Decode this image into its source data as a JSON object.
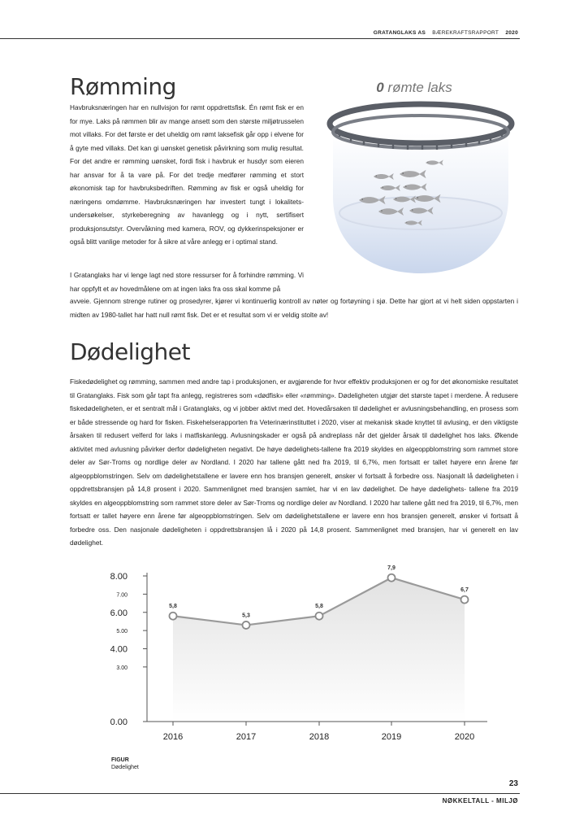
{
  "header": {
    "company": "GRATANGLAKS AS",
    "report": "BÆREKRAFTSRAPPORT",
    "year": "2020"
  },
  "section1": {
    "title": "Rømming",
    "kpi_value": "0",
    "kpi_label": " rømte laks",
    "para1": "Havbruksnæringen har en nullvisjon for rømt oppdrettsfisk. Én rømt fisk er en for mye. Laks på rømmen blir av mange ansett som den største miljøtrusselen mot villaks. For det første er det uheldig om rømt laksefisk går opp i elvene for å gyte med villaks. Det kan gi uønsket genetisk påvirkning som mulig resultat. For det andre er rømming uønsket, fordi fisk i havbruk er husdyr som eieren har ansvar for å ta vare på. For det tredje medfører rømming et stort økonomisk tap for havbruksbedriften. Rømming av fisk er også uheldig for næringens omdømme. Havbruksnæringen har investert tungt i lokalitets-undersøkelser, styrkeberegning av havanlegg og i nytt, sertifisert produksjonsutstyr. Overvåkning med kamera, ROV, og dykkerinspeksjoner er også blitt vanlige metoder for å sikre at våre anlegg er i optimal stand.",
    "para2": "I Gratanglaks har vi lenge lagt ned store ressurser for å forhindre rømming. Vi har oppfylt et av hovedmålene om at ingen laks fra oss skal komme på",
    "para3": "avveie. Gjennom strenge rutiner og prosedyrer, kjører vi kontinuerlig kontroll av nøter og fortøyning i sjø. Dette har gjort at vi helt siden oppstarten i midten av 1980-tallet har hatt null rømt fisk. Det er et resultat som vi er veldig stolte av!"
  },
  "section2": {
    "title": "Dødelighet",
    "para": "Fiskedødelighet og rømming, sammen med andre tap i produksjonen, er avgjørende for hvor effektiv produksjonen er og for det økonomiske resultatet til Gratanglaks. Fisk som går tapt fra anlegg, registreres som «dødfisk» eller «rømming». Dødeligheten utgjør det største tapet i merdene. Å redusere fiskedødeligheten, er et sentralt mål i Gratanglaks, og vi jobber aktivt med det. Hovedårsaken til dødelighet er avlusningsbehandling, en prosess som er både stressende og hard for fisken. Fiskehelserapporten fra Veterinærinstituttet i 2020, viser at mekanisk skade knyttet til avlusing, er den viktigste årsaken til redusert velferd for laks i matfiskanlegg. Avlusningskader er også på andreplass når det gjelder årsak til dødelighet hos laks. Økende aktivitet med avlusning påvirker derfor dødeligheten negativt. De høye dødelighets-tallene fra 2019 skyldes en algeoppblomstring som rammet store deler av Sør-Troms og nordlige deler av Nordland. I 2020 har tallene gått ned fra 2019, til 6,7%, men fortsatt er tallet høyere enn årene før algeoppblomstringen. Selv om dødelighetstallene er lavere enn hos bransjen generelt, ønsker vi fortsatt å forbedre oss. Nasjonalt lå dødeligheten i oppdrettsbransjen på 14,8 prosent i 2020. Sammenlignet med bransjen samlet, har vi en lav dødelighet. De høye dødelighets- tallene fra 2019 skyldes en algeoppblomstring som rammet store deler av Sør-Troms og nordlige deler av Nordland. I 2020 har tallene gått ned fra 2019, til 6,7%, men fortsatt er tallet høyere enn årene før algeoppblomstringen. Selv om dødelighetstallene er lavere enn hos bransjen generelt, ønsker vi fortsatt å forbedre oss. Den nasjonale dødeligheten i oppdrettsbransjen lå i 2020 på 14,8 prosent. Sammenlignet med bransjen, har vi generelt en lav dødelighet."
  },
  "figure": {
    "label": "FIGUR",
    "caption": "Dødelighet"
  },
  "chart_data": {
    "type": "area",
    "categories": [
      "2016",
      "2017",
      "2018",
      "2019",
      "2020"
    ],
    "values": [
      5.8,
      5.3,
      5.8,
      7.9,
      6.7
    ],
    "data_labels": [
      "5,8",
      "5,3",
      "5,8",
      "7,9",
      "6,7"
    ],
    "ylim": [
      0,
      8
    ],
    "yticks": [
      {
        "value": 8,
        "label": "8.00",
        "major": true
      },
      {
        "value": 7,
        "label": "7.00",
        "major": false
      },
      {
        "value": 6,
        "label": "6.00",
        "major": true
      },
      {
        "value": 5,
        "label": "5.00",
        "major": false
      },
      {
        "value": 4,
        "label": "4.00",
        "major": true
      },
      {
        "value": 3,
        "label": "3.00",
        "major": false
      },
      {
        "value": 0,
        "label": "0.00",
        "major": true
      }
    ],
    "ymin_shown": 0,
    "title": "",
    "xlabel": "",
    "ylabel": "",
    "grid": false,
    "colors": {
      "line": "#9a9a9a",
      "fill_top": "#e2e2e2",
      "fill_bottom": "#ffffff",
      "axis": "#555555"
    }
  },
  "footer": {
    "page_number": "23",
    "section": "NØKKELTALL - MILJØ"
  }
}
